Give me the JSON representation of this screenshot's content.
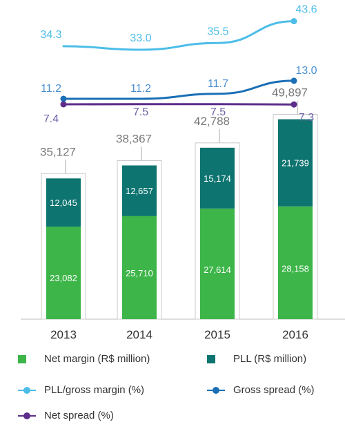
{
  "chart_data": {
    "type": "bar",
    "categories": [
      "2013",
      "2014",
      "2015",
      "2016"
    ],
    "totals": [
      "35,127",
      "38,367",
      "42,788",
      "49,897"
    ],
    "series": [
      {
        "name": "Net margin (R$ million)",
        "values": [
          23082,
          25710,
          27614,
          28158
        ],
        "labels": [
          "23,082",
          "25,710",
          "27,614",
          "28,158"
        ],
        "color": "#3db549"
      },
      {
        "name": "PLL (R$ million)",
        "values": [
          12045,
          12657,
          15174,
          21739
        ],
        "labels": [
          "12,045",
          "12,657",
          "15,174",
          "21,739"
        ],
        "color": "#0e7470"
      }
    ],
    "lines": [
      {
        "name": "PLL/gross margin (%)",
        "values": [
          34.3,
          33.0,
          35.5,
          43.6
        ],
        "labels": [
          "34.3",
          "33.0",
          "35.5",
          "43.6"
        ],
        "color": "#4cbde8",
        "label_color": "#4cbde8"
      },
      {
        "name": "Gross spread (%)",
        "values": [
          11.2,
          11.2,
          11.7,
          13.0
        ],
        "labels": [
          "11.2",
          "11.2",
          "11.7",
          "13.0"
        ],
        "color": "#1a6fb5",
        "label_color": "#4a90d0"
      },
      {
        "name": "Net spread (%)",
        "values": [
          7.4,
          7.5,
          7.5,
          7.3
        ],
        "labels": [
          "7.4",
          "7.5",
          "7.5",
          "7.3"
        ],
        "color": "#5c2d8a",
        "label_color": "#6b5fa6"
      }
    ],
    "bar_ylim": [
      0,
      55000
    ],
    "total_label_color": "#777777",
    "axis_label_color": "#333333"
  },
  "legend": {
    "net_margin": "Net margin (R$ million)",
    "pll": "PLL (R$ million)",
    "pll_gross": "PLL/gross margin (%)",
    "gross_spread": "Gross spread (%)",
    "net_spread": "Net spread (%)"
  }
}
